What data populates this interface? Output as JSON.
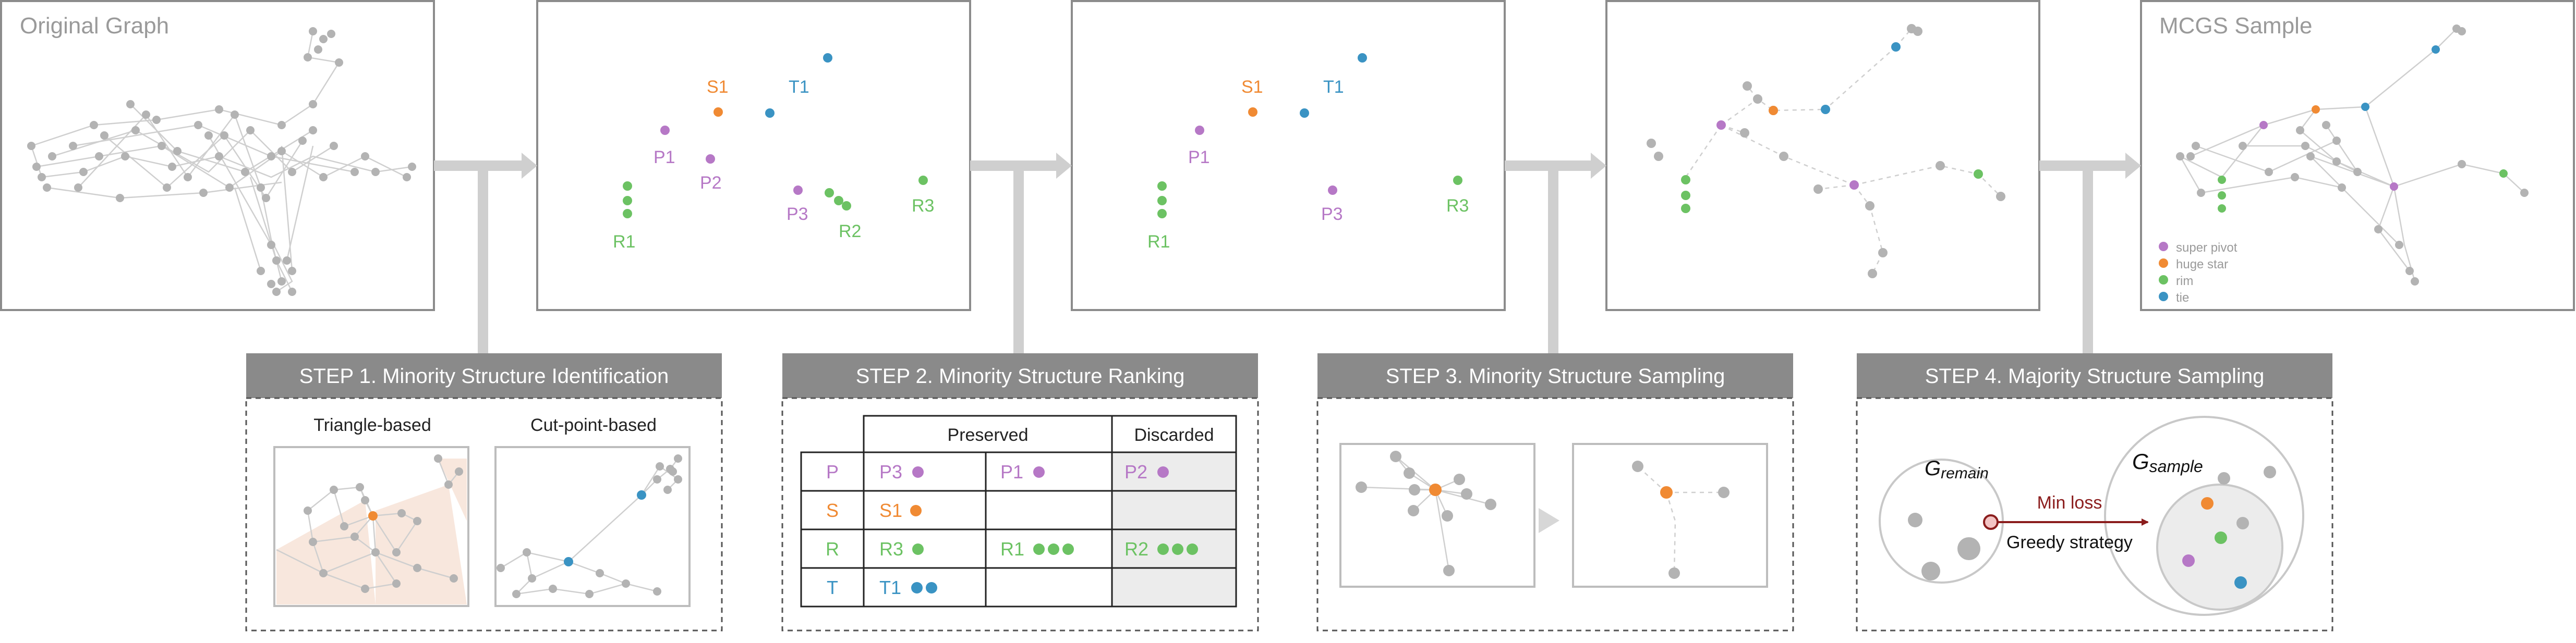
{
  "panels": {
    "original_title": "Original Graph",
    "sample_title": "MCGS Sample"
  },
  "points": {
    "s1": "S1",
    "t1": "T1",
    "p1": "P1",
    "p2": "P2",
    "p3": "P3",
    "r1": "R1",
    "r2": "R2",
    "r3": "R3"
  },
  "legend": [
    "super pivot",
    "huge star",
    "rim",
    "tie"
  ],
  "steps": {
    "s1": {
      "header": "STEP 1. Minority Structure Identification",
      "sub_left": "Triangle-based",
      "sub_right": "Cut-point-based"
    },
    "s2": {
      "header": "STEP 2. Minority Structure Ranking",
      "col_preserved": "Preserved",
      "col_discarded": "Discarded",
      "rows": [
        {
          "key": "P",
          "cells": [
            "P3",
            "P1",
            "P2"
          ]
        },
        {
          "key": "S",
          "cells": [
            "S1",
            "",
            ""
          ]
        },
        {
          "key": "R",
          "cells": [
            "R3",
            "R1",
            "R2"
          ]
        },
        {
          "key": "T",
          "cells": [
            "T1",
            "",
            ""
          ]
        }
      ]
    },
    "s3": {
      "header": "STEP 3. Minority Structure Sampling"
    },
    "s4": {
      "header": "STEP 4. Majority Structure Sampling",
      "g_remain_base": "G",
      "g_remain_sub": "remain",
      "g_sample_base": "G",
      "g_sample_sub": "sample",
      "min_loss": "Min loss",
      "greedy": "Greedy strategy"
    }
  },
  "colors": {
    "purple": "#b678c6",
    "orange": "#f08a33",
    "green": "#6cc263",
    "blue": "#3a93c3",
    "gray_node": "#b3b3b3",
    "edge": "#cccccc",
    "frame": "#8c8c8c",
    "header_bg": "#8a8a8a",
    "arrow": "#cfcfcf",
    "dark_red": "#8b1d1d"
  }
}
